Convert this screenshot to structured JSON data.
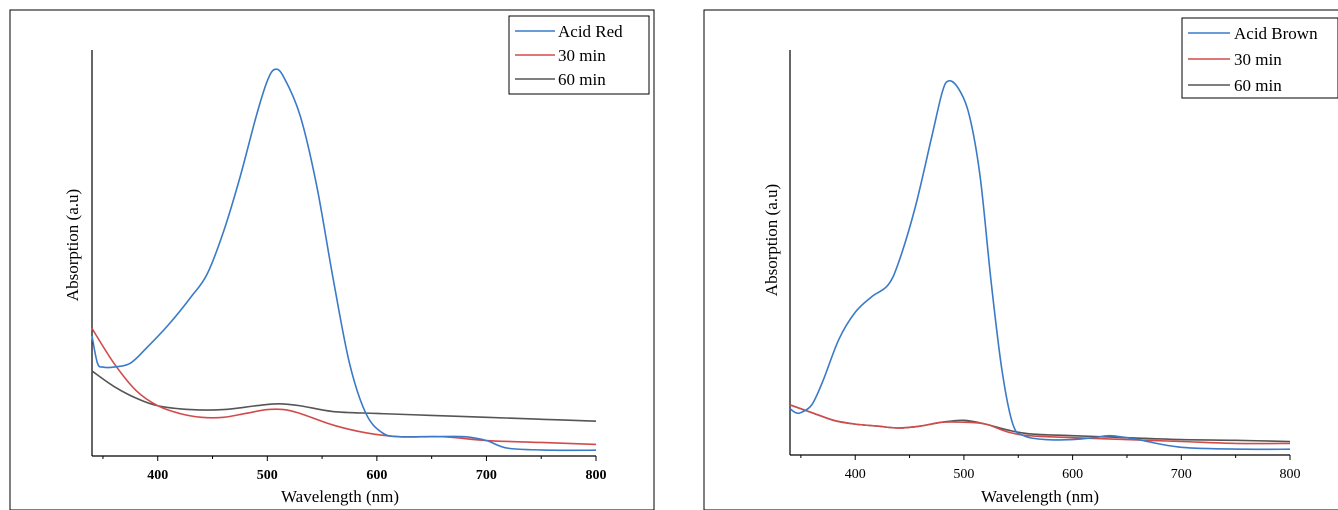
{
  "chart_data": [
    {
      "type": "line",
      "xlabel": "Wavelength (nm)",
      "ylabel": "Absorption (a.u)",
      "xlim": [
        340,
        800
      ],
      "ylim": [
        0,
        1.05
      ],
      "xticks": [
        "400",
        "500",
        "600",
        "700",
        "800"
      ],
      "legend_position": "top-right",
      "series": [
        {
          "name": "Acid Red",
          "color": "#3a7ac8",
          "points": [
            [
              340,
              0.31
            ],
            [
              345,
              0.24
            ],
            [
              350,
              0.23
            ],
            [
              360,
              0.23
            ],
            [
              375,
              0.24
            ],
            [
              390,
              0.28
            ],
            [
              410,
              0.34
            ],
            [
              430,
              0.41
            ],
            [
              445,
              0.47
            ],
            [
              460,
              0.58
            ],
            [
              475,
              0.72
            ],
            [
              490,
              0.88
            ],
            [
              500,
              0.97
            ],
            [
              507,
              1.0
            ],
            [
              515,
              0.98
            ],
            [
              530,
              0.88
            ],
            [
              545,
              0.7
            ],
            [
              560,
              0.46
            ],
            [
              575,
              0.24
            ],
            [
              590,
              0.11
            ],
            [
              605,
              0.06
            ],
            [
              620,
              0.05
            ],
            [
              650,
              0.05
            ],
            [
              680,
              0.05
            ],
            [
              700,
              0.04
            ],
            [
              720,
              0.02
            ],
            [
              760,
              0.015
            ],
            [
              800,
              0.015
            ]
          ]
        },
        {
          "name": "30 min",
          "color": "#d24b4b",
          "points": [
            [
              340,
              0.33
            ],
            [
              360,
              0.24
            ],
            [
              380,
              0.17
            ],
            [
              400,
              0.13
            ],
            [
              420,
              0.11
            ],
            [
              440,
              0.1
            ],
            [
              460,
              0.1
            ],
            [
              480,
              0.11
            ],
            [
              500,
              0.12
            ],
            [
              515,
              0.12
            ],
            [
              530,
              0.11
            ],
            [
              560,
              0.08
            ],
            [
              590,
              0.06
            ],
            [
              620,
              0.05
            ],
            [
              660,
              0.05
            ],
            [
              700,
              0.04
            ],
            [
              750,
              0.035
            ],
            [
              800,
              0.03
            ]
          ]
        },
        {
          "name": "60 min",
          "color": "#555555",
          "points": [
            [
              340,
              0.22
            ],
            [
              360,
              0.18
            ],
            [
              380,
              0.15
            ],
            [
              400,
              0.13
            ],
            [
              430,
              0.12
            ],
            [
              460,
              0.12
            ],
            [
              490,
              0.13
            ],
            [
              510,
              0.135
            ],
            [
              530,
              0.13
            ],
            [
              560,
              0.115
            ],
            [
              600,
              0.11
            ],
            [
              650,
              0.105
            ],
            [
              700,
              0.1
            ],
            [
              750,
              0.095
            ],
            [
              800,
              0.09
            ]
          ]
        }
      ]
    },
    {
      "type": "line",
      "xlabel": "Wavelength (nm)",
      "ylabel": "Absorption (a.u)",
      "xlim": [
        340,
        800
      ],
      "ylim": [
        0,
        1.05
      ],
      "xticks": [
        "400",
        "500",
        "600",
        "700",
        "800"
      ],
      "legend_position": "top-right",
      "series": [
        {
          "name": "Acid Brown",
          "color": "#3a7ac8",
          "points": [
            [
              340,
              0.12
            ],
            [
              345,
              0.11
            ],
            [
              350,
              0.11
            ],
            [
              360,
              0.13
            ],
            [
              370,
              0.19
            ],
            [
              385,
              0.3
            ],
            [
              400,
              0.37
            ],
            [
              415,
              0.41
            ],
            [
              430,
              0.44
            ],
            [
              440,
              0.5
            ],
            [
              455,
              0.64
            ],
            [
              470,
              0.82
            ],
            [
              480,
              0.94
            ],
            [
              486,
              0.97
            ],
            [
              495,
              0.95
            ],
            [
              505,
              0.88
            ],
            [
              515,
              0.72
            ],
            [
              525,
              0.45
            ],
            [
              535,
              0.22
            ],
            [
              545,
              0.08
            ],
            [
              555,
              0.05
            ],
            [
              575,
              0.04
            ],
            [
              600,
              0.04
            ],
            [
              620,
              0.045
            ],
            [
              635,
              0.05
            ],
            [
              660,
              0.04
            ],
            [
              700,
              0.02
            ],
            [
              760,
              0.015
            ],
            [
              800,
              0.015
            ]
          ]
        },
        {
          "name": "30 min",
          "color": "#d24b4b",
          "points": [
            [
              340,
              0.13
            ],
            [
              360,
              0.11
            ],
            [
              380,
              0.09
            ],
            [
              400,
              0.08
            ],
            [
              420,
              0.075
            ],
            [
              440,
              0.07
            ],
            [
              460,
              0.075
            ],
            [
              480,
              0.085
            ],
            [
              500,
              0.085
            ],
            [
              520,
              0.08
            ],
            [
              540,
              0.06
            ],
            [
              560,
              0.05
            ],
            [
              600,
              0.045
            ],
            [
              650,
              0.04
            ],
            [
              700,
              0.035
            ],
            [
              750,
              0.03
            ],
            [
              800,
              0.03
            ]
          ]
        },
        {
          "name": "60 min",
          "color": "#555555",
          "points": [
            [
              340,
              0.13
            ],
            [
              360,
              0.11
            ],
            [
              380,
              0.09
            ],
            [
              400,
              0.08
            ],
            [
              420,
              0.075
            ],
            [
              440,
              0.07
            ],
            [
              460,
              0.075
            ],
            [
              480,
              0.085
            ],
            [
              500,
              0.09
            ],
            [
              520,
              0.08
            ],
            [
              540,
              0.065
            ],
            [
              560,
              0.055
            ],
            [
              600,
              0.05
            ],
            [
              650,
              0.045
            ],
            [
              700,
              0.04
            ],
            [
              750,
              0.038
            ],
            [
              800,
              0.035
            ]
          ]
        }
      ]
    }
  ]
}
